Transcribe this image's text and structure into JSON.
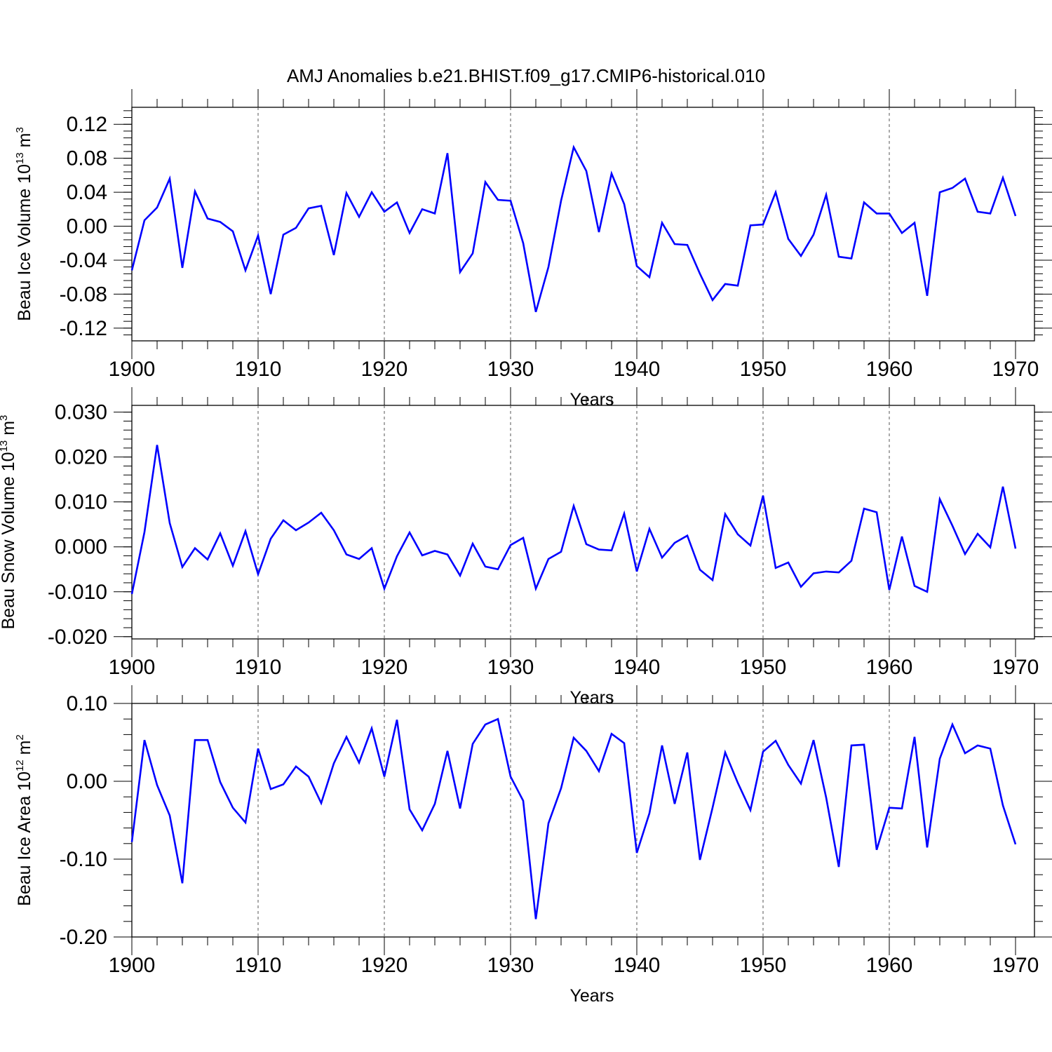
{
  "title": "AMJ Anomalies b.e21.BHIST.f09_g17.CMIP6-historical.010",
  "series_color": "#0000ff",
  "chart_data": [
    {
      "type": "line",
      "ylabel": {
        "text": "Beau Ice Volume 10",
        "exp": "13",
        "unit": " m",
        "unit_exp": "3"
      },
      "xlabel": "Years",
      "xlim": [
        1900,
        1970
      ],
      "ylim": [
        -0.135,
        0.14
      ],
      "yticks": [
        -0.12,
        -0.08,
        -0.04,
        0.0,
        0.04,
        0.08,
        0.12
      ],
      "ytick_labels": [
        "-0.12",
        "-0.08",
        "-0.04",
        "0.00",
        "0.04",
        "0.08",
        "0.12"
      ],
      "xticks": [
        1900,
        1910,
        1920,
        1930,
        1940,
        1950,
        1960,
        1970
      ],
      "xtick_labels": [
        "1900",
        "1910",
        "1920",
        "1930",
        "1940",
        "1950",
        "1960",
        "1970"
      ],
      "grid": "vertical dashed at decades",
      "series": [
        {
          "name": "Beau Ice Volume",
          "x": [
            1900,
            1901,
            1902,
            1903,
            1904,
            1905,
            1906,
            1907,
            1908,
            1909,
            1910,
            1911,
            1912,
            1913,
            1914,
            1915,
            1916,
            1917,
            1918,
            1919,
            1920,
            1921,
            1922,
            1923,
            1924,
            1925,
            1926,
            1927,
            1928,
            1929,
            1930,
            1931,
            1932,
            1933,
            1934,
            1935,
            1936,
            1937,
            1938,
            1939,
            1940,
            1941,
            1942,
            1943,
            1944,
            1945,
            1946,
            1947,
            1948,
            1949,
            1950,
            1951,
            1952,
            1953,
            1954,
            1955,
            1956,
            1957,
            1958,
            1959,
            1960,
            1961,
            1962,
            1963,
            1964,
            1965,
            1966,
            1967,
            1968,
            1969,
            1970
          ],
          "values": [
            -0.052,
            0.007,
            0.022,
            0.056,
            -0.049,
            0.041,
            0.009,
            0.005,
            -0.006,
            -0.052,
            -0.011,
            -0.08,
            -0.01,
            -0.002,
            0.021,
            0.024,
            -0.034,
            0.039,
            0.011,
            0.04,
            0.017,
            0.028,
            -0.008,
            0.02,
            0.015,
            0.086,
            -0.054,
            -0.032,
            0.052,
            0.031,
            0.03,
            -0.02,
            -0.101,
            -0.048,
            0.03,
            0.093,
            0.065,
            -0.007,
            0.062,
            0.026,
            -0.047,
            -0.06,
            0.004,
            -0.021,
            -0.022,
            -0.056,
            -0.087,
            -0.068,
            -0.07,
            0.001,
            0.002,
            0.04,
            -0.015,
            -0.035,
            -0.01,
            0.037,
            -0.036,
            -0.038,
            0.028,
            0.015,
            0.015,
            -0.008,
            0.004,
            -0.082,
            0.04,
            0.045,
            0.056,
            0.017,
            0.015,
            0.057,
            0.012
          ]
        }
      ]
    },
    {
      "type": "line",
      "ylabel": {
        "text": "Beau Snow Volume 10",
        "exp": "13",
        "unit": " m",
        "unit_exp": "3"
      },
      "xlabel": "Years",
      "xlim": [
        1900,
        1970
      ],
      "ylim": [
        -0.0205,
        0.0315
      ],
      "yticks": [
        -0.02,
        -0.01,
        0.0,
        0.01,
        0.02,
        0.03
      ],
      "ytick_labels": [
        "-0.020",
        "-0.010",
        "0.000",
        "0.010",
        "0.020",
        "0.030"
      ],
      "xticks": [
        1900,
        1910,
        1920,
        1930,
        1940,
        1950,
        1960,
        1970
      ],
      "xtick_labels": [
        "1900",
        "1910",
        "1920",
        "1930",
        "1940",
        "1950",
        "1960",
        "1970"
      ],
      "grid": "vertical dashed at decades",
      "series": [
        {
          "name": "Beau Snow Volume",
          "x": [
            1900,
            1901,
            1902,
            1903,
            1904,
            1905,
            1906,
            1907,
            1908,
            1909,
            1910,
            1911,
            1912,
            1913,
            1914,
            1915,
            1916,
            1917,
            1918,
            1919,
            1920,
            1921,
            1922,
            1923,
            1924,
            1925,
            1926,
            1927,
            1928,
            1929,
            1930,
            1931,
            1932,
            1933,
            1934,
            1935,
            1936,
            1937,
            1938,
            1939,
            1940,
            1941,
            1942,
            1943,
            1944,
            1945,
            1946,
            1947,
            1948,
            1949,
            1950,
            1951,
            1952,
            1953,
            1954,
            1955,
            1956,
            1957,
            1958,
            1959,
            1960,
            1961,
            1962,
            1963,
            1964,
            1965,
            1966,
            1967,
            1968,
            1969,
            1970
          ],
          "values": [
            -0.0105,
            0.0033,
            0.0227,
            0.0053,
            -0.0045,
            -0.0003,
            -0.0028,
            0.003,
            -0.0042,
            0.0035,
            -0.0061,
            0.0018,
            0.0059,
            0.0037,
            0.0054,
            0.0076,
            0.0037,
            -0.0017,
            -0.0027,
            -0.0003,
            -0.0093,
            -0.0021,
            0.0032,
            -0.0019,
            -0.0009,
            -0.0017,
            -0.0064,
            0.0007,
            -0.0044,
            -0.005,
            0.0004,
            0.002,
            -0.0093,
            -0.0027,
            -0.0011,
            0.0091,
            0.0006,
            -0.0006,
            -0.0008,
            0.0074,
            -0.0055,
            0.004,
            -0.0024,
            0.0009,
            0.0025,
            -0.0051,
            -0.0074,
            0.0073,
            0.0028,
            0.0003,
            0.0114,
            -0.0047,
            -0.0035,
            -0.0089,
            -0.0059,
            -0.0055,
            -0.0057,
            -0.0031,
            0.0085,
            0.0077,
            -0.0096,
            0.0023,
            -0.0087,
            -0.01,
            0.0106,
            0.0047,
            -0.0016,
            0.0029,
            -0.0001,
            0.0134,
            -0.0004
          ]
        }
      ]
    },
    {
      "type": "line",
      "ylabel": {
        "text": "Beau Ice Area 10",
        "exp": "12",
        "unit": " m",
        "unit_exp": "2"
      },
      "xlabel": "Years",
      "xlim": [
        1900,
        1970
      ],
      "ylim": [
        -0.2,
        0.1
      ],
      "yticks": [
        -0.2,
        -0.1,
        0.0,
        0.1
      ],
      "ytick_labels": [
        "-0.20",
        "-0.10",
        "0.00",
        "0.10"
      ],
      "xticks": [
        1900,
        1910,
        1920,
        1930,
        1940,
        1950,
        1960,
        1970
      ],
      "xtick_labels": [
        "1900",
        "1910",
        "1920",
        "1930",
        "1940",
        "1950",
        "1960",
        "1970"
      ],
      "grid": "vertical dashed at decades",
      "series": [
        {
          "name": "Beau Ice Area",
          "x": [
            1900,
            1901,
            1902,
            1903,
            1904,
            1905,
            1906,
            1907,
            1908,
            1909,
            1910,
            1911,
            1912,
            1913,
            1914,
            1915,
            1916,
            1917,
            1918,
            1919,
            1920,
            1921,
            1922,
            1923,
            1924,
            1925,
            1926,
            1927,
            1928,
            1929,
            1930,
            1931,
            1932,
            1933,
            1934,
            1935,
            1936,
            1937,
            1938,
            1939,
            1940,
            1941,
            1942,
            1943,
            1944,
            1945,
            1946,
            1947,
            1948,
            1949,
            1950,
            1951,
            1952,
            1953,
            1954,
            1955,
            1956,
            1957,
            1958,
            1959,
            1960,
            1961,
            1962,
            1963,
            1964,
            1965,
            1966,
            1967,
            1968,
            1969,
            1970
          ],
          "values": [
            -0.078,
            0.053,
            -0.005,
            -0.044,
            -0.131,
            0.053,
            0.053,
            -0.001,
            -0.034,
            -0.053,
            0.042,
            -0.01,
            -0.004,
            0.019,
            0.006,
            -0.028,
            0.023,
            0.057,
            0.024,
            0.068,
            0.006,
            0.079,
            -0.036,
            -0.063,
            -0.029,
            0.039,
            -0.035,
            0.048,
            0.073,
            0.08,
            0.006,
            -0.025,
            -0.177,
            -0.054,
            -0.009,
            0.056,
            0.039,
            0.013,
            0.061,
            0.049,
            -0.092,
            -0.041,
            0.046,
            -0.029,
            0.037,
            -0.101,
            -0.034,
            0.037,
            -0.002,
            -0.037,
            0.038,
            0.052,
            0.021,
            -0.003,
            0.053,
            -0.021,
            -0.11,
            0.046,
            0.047,
            -0.088,
            -0.034,
            -0.035,
            0.057,
            -0.085,
            0.029,
            0.073,
            0.036,
            0.046,
            0.042,
            -0.031,
            -0.081
          ]
        }
      ]
    }
  ]
}
